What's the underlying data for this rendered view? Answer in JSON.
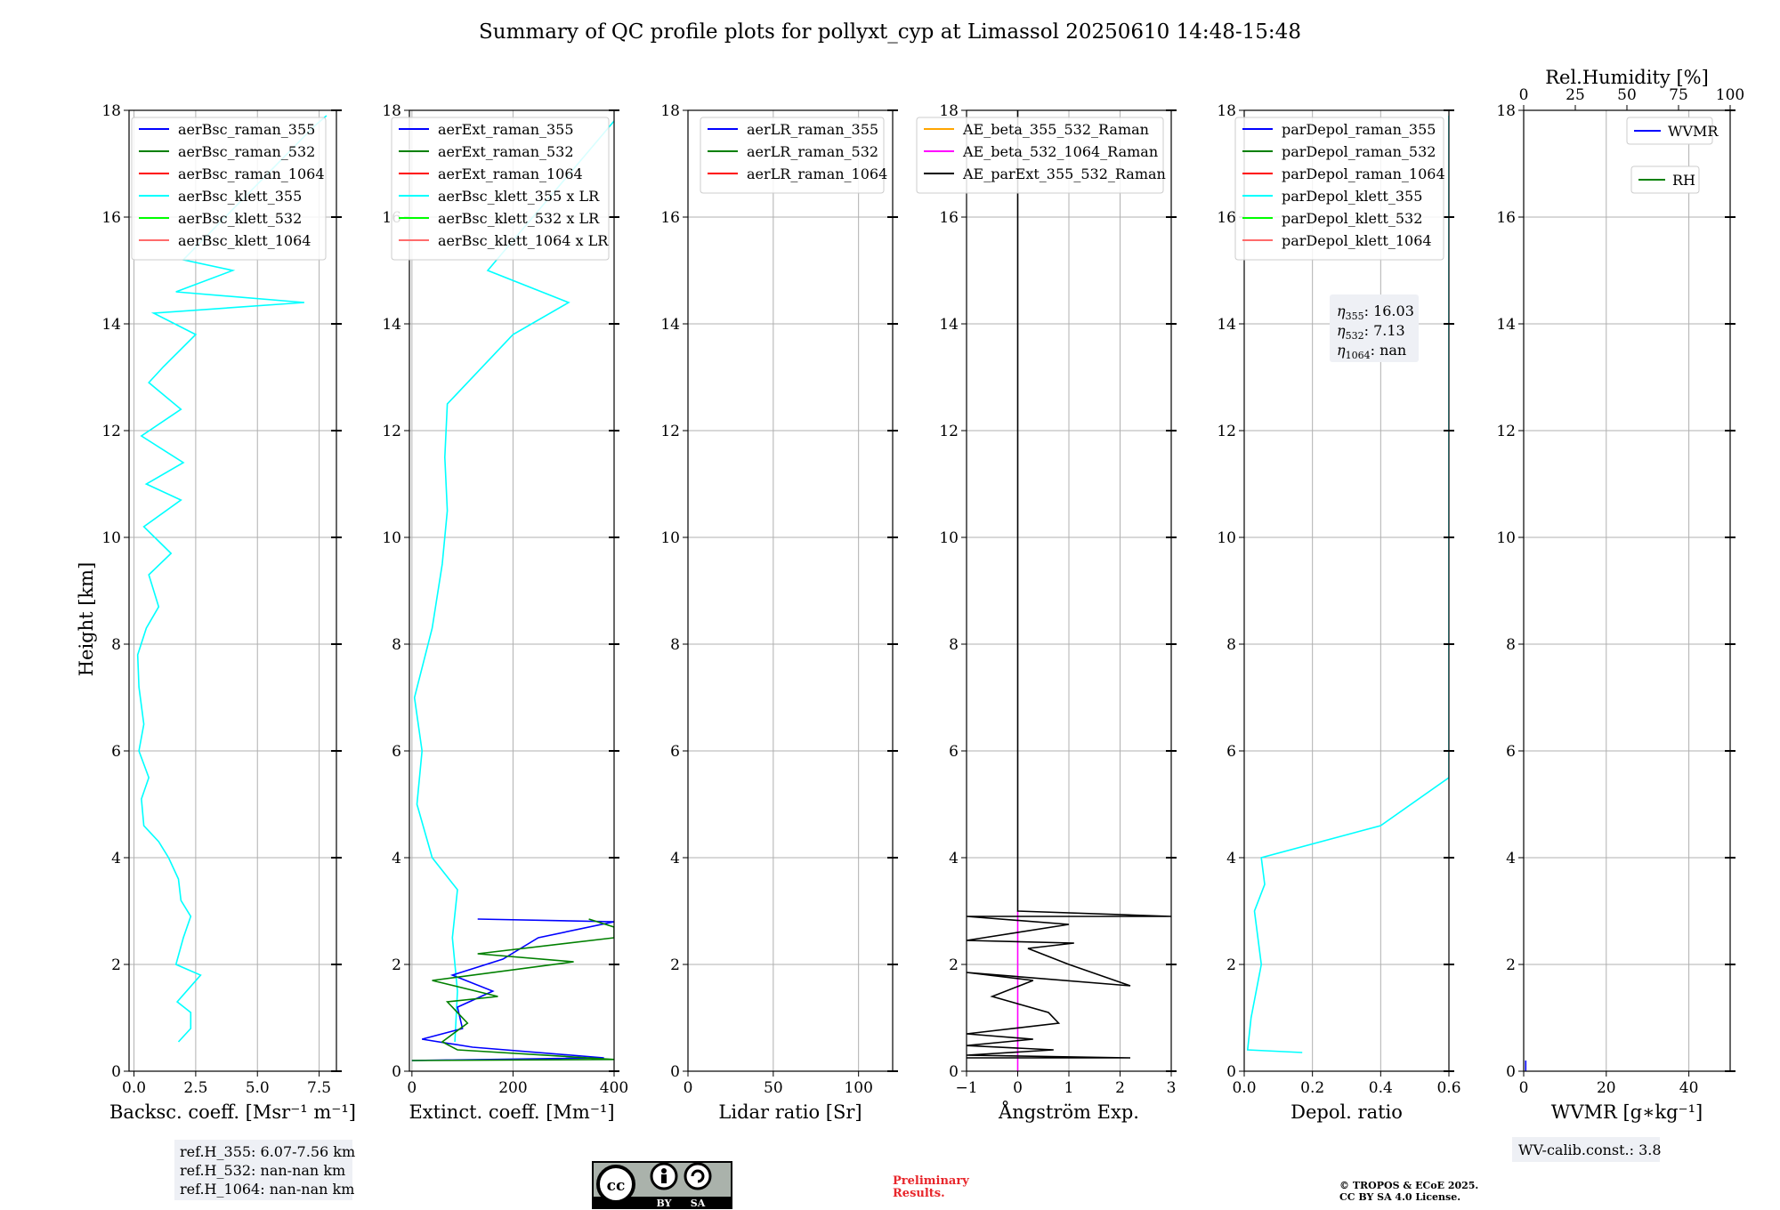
{
  "title": "Summary of QC profile plots for pollyxt_cyp at Limassol 20250610 14:48-15:48",
  "y_axis": {
    "label": "Height [km]",
    "range": [
      0,
      18
    ],
    "ticks": [
      "0",
      "2",
      "4",
      "6",
      "8",
      "10",
      "12",
      "14",
      "16",
      "18"
    ]
  },
  "chart_data": [
    {
      "type": "line",
      "id": "backscatter",
      "xlabel": "Backsc. coeff. [Msr⁻¹ m⁻¹]",
      "xlim": [
        -0.2,
        8.2
      ],
      "xticks": [
        {
          "v": 0,
          "t": "0.0"
        },
        {
          "v": 2.5,
          "t": "2.5"
        },
        {
          "v": 5,
          "t": "5.0"
        },
        {
          "v": 7.5,
          "t": "7.5"
        }
      ],
      "ylabel": "Height [km]",
      "ylim": [
        0,
        18
      ],
      "legend": [
        "aerBsc_raman_355",
        "aerBsc_raman_532",
        "aerBsc_raman_1064",
        "aerBsc_klett_355",
        "aerBsc_klett_532",
        "aerBsc_klett_1064"
      ],
      "legend_colors": [
        "#0000ff",
        "#008000",
        "#ff0000",
        "#00ffff",
        "#00ff00",
        "#ff6b6b"
      ],
      "legend_position": "top-right",
      "series": [
        {
          "name": "aerBsc_klett_355",
          "color": "#00ffff",
          "profile": [
            [
              1.8,
              0.55
            ],
            [
              2.3,
              0.8
            ],
            [
              2.3,
              1.1
            ],
            [
              1.75,
              1.3
            ],
            [
              2.7,
              1.8
            ],
            [
              1.7,
              2.0
            ],
            [
              2.0,
              2.5
            ],
            [
              2.3,
              2.9
            ],
            [
              1.9,
              3.2
            ],
            [
              1.8,
              3.6
            ],
            [
              1.4,
              4.0
            ],
            [
              1.0,
              4.3
            ],
            [
              0.4,
              4.6
            ],
            [
              0.3,
              5.1
            ],
            [
              0.6,
              5.5
            ],
            [
              0.2,
              6.0
            ],
            [
              0.4,
              6.5
            ],
            [
              0.2,
              7.2
            ],
            [
              0.15,
              7.8
            ],
            [
              0.5,
              8.3
            ],
            [
              1.0,
              8.7
            ],
            [
              0.6,
              9.3
            ],
            [
              1.5,
              9.7
            ],
            [
              0.4,
              10.2
            ],
            [
              1.9,
              10.7
            ],
            [
              0.5,
              11.0
            ],
            [
              2.0,
              11.4
            ],
            [
              0.3,
              11.9
            ],
            [
              1.9,
              12.4
            ],
            [
              0.6,
              12.9
            ],
            [
              1.2,
              13.2
            ],
            [
              2.5,
              13.8
            ],
            [
              0.8,
              14.2
            ],
            [
              6.9,
              14.4
            ],
            [
              1.7,
              14.6
            ],
            [
              4.0,
              15.0
            ],
            [
              2.0,
              15.2
            ],
            [
              7.3,
              17.7
            ],
            [
              7.8,
              17.9
            ]
          ]
        }
      ]
    },
    {
      "type": "line",
      "id": "extinction",
      "xlabel": "Extinct. coeff. [Mm⁻¹]",
      "xlim": [
        -5,
        400
      ],
      "xticks": [
        {
          "v": 0,
          "t": "0"
        },
        {
          "v": 200,
          "t": "200"
        },
        {
          "v": 400,
          "t": "400"
        }
      ],
      "ylim": [
        0,
        18
      ],
      "legend": [
        "aerExt_raman_355",
        "aerExt_raman_532",
        "aerExt_raman_1064",
        "aerBsc_klett_355 x LR",
        "aerBsc_klett_532 x LR",
        "aerBsc_klett_1064 x LR"
      ],
      "legend_colors": [
        "#0000ff",
        "#008000",
        "#ff0000",
        "#00ffff",
        "#00ff00",
        "#ff6b6b"
      ],
      "legend_position": "top-right",
      "series": [
        {
          "name": "aerBsc_klett_355 x LR",
          "color": "#00ffff",
          "profile": [
            [
              85,
              0.55
            ],
            [
              90,
              1.5
            ],
            [
              80,
              2.5
            ],
            [
              90,
              3.4
            ],
            [
              40,
              4.0
            ],
            [
              10,
              5.0
            ],
            [
              20,
              6.0
            ],
            [
              5,
              7.0
            ],
            [
              40,
              8.3
            ],
            [
              60,
              9.5
            ],
            [
              70,
              10.5
            ],
            [
              65,
              11.5
            ],
            [
              70,
              12.5
            ],
            [
              200,
              13.8
            ],
            [
              310,
              14.4
            ],
            [
              150,
              15.0
            ],
            [
              400,
              17.8
            ]
          ]
        },
        {
          "name": "aerExt_raman_355",
          "color": "#0000ff",
          "profile": [
            [
              0,
              0.2
            ],
            [
              380,
              0.25
            ],
            [
              120,
              0.45
            ],
            [
              20,
              0.6
            ],
            [
              100,
              0.8
            ],
            [
              90,
              1.2
            ],
            [
              160,
              1.5
            ],
            [
              80,
              1.8
            ],
            [
              180,
              2.1
            ],
            [
              250,
              2.5
            ],
            [
              400,
              2.8
            ],
            [
              130,
              2.85
            ]
          ]
        },
        {
          "name": "aerExt_raman_532",
          "color": "#008000",
          "profile": [
            [
              0,
              0.2
            ],
            [
              400,
              0.22
            ],
            [
              90,
              0.4
            ],
            [
              60,
              0.55
            ],
            [
              110,
              0.9
            ],
            [
              70,
              1.3
            ],
            [
              170,
              1.4
            ],
            [
              40,
              1.7
            ],
            [
              320,
              2.05
            ],
            [
              130,
              2.2
            ],
            [
              400,
              2.5
            ],
            [
              400,
              2.7
            ],
            [
              350,
              2.85
            ]
          ]
        }
      ]
    },
    {
      "type": "line",
      "id": "lidar-ratio",
      "xlabel": "Lidar ratio [Sr]",
      "xlim": [
        0,
        120
      ],
      "xticks": [
        {
          "v": 0,
          "t": "0"
        },
        {
          "v": 50,
          "t": "50"
        },
        {
          "v": 100,
          "t": "100"
        }
      ],
      "ylim": [
        0,
        18
      ],
      "legend": [
        "aerLR_raman_355",
        "aerLR_raman_532",
        "aerLR_raman_1064"
      ],
      "legend_colors": [
        "#0000ff",
        "#008000",
        "#ff0000"
      ],
      "legend_position": "top-left",
      "series": []
    },
    {
      "type": "line",
      "id": "angstrom",
      "xlabel": "Ångström Exp.",
      "xlim": [
        -1,
        3
      ],
      "xticks": [
        {
          "v": -1,
          "t": "−1"
        },
        {
          "v": 0,
          "t": "0"
        },
        {
          "v": 1,
          "t": "1"
        },
        {
          "v": 2,
          "t": "2"
        },
        {
          "v": 3,
          "t": "3"
        }
      ],
      "ylim": [
        0,
        18
      ],
      "legend": [
        "AE_beta_355_532_Raman",
        "AE_beta_532_1064_Raman",
        "AE_parExt_355_532_Raman"
      ],
      "legend_colors": [
        "#ffa500",
        "#ff00ff",
        "#000000"
      ],
      "legend_position": "top",
      "series": [
        {
          "name": "AE_beta_532_1064_Raman",
          "color": "#ff00ff",
          "profile": [
            [
              0,
              0
            ],
            [
              0,
              3.0
            ]
          ]
        },
        {
          "name": "AE_parExt_355_532_Raman",
          "color": "#000000",
          "profile": [
            [
              -1,
              0.25
            ],
            [
              2.2,
              0.25
            ],
            [
              -1,
              0.3
            ],
            [
              0.7,
              0.4
            ],
            [
              -1,
              0.48
            ],
            [
              0.3,
              0.6
            ],
            [
              -1,
              0.7
            ],
            [
              0.8,
              0.9
            ],
            [
              0.6,
              1.1
            ],
            [
              -0.5,
              1.4
            ],
            [
              0.3,
              1.7
            ],
            [
              -1,
              1.85
            ],
            [
              2.2,
              1.6
            ],
            [
              1.0,
              2.0
            ],
            [
              0.2,
              2.3
            ],
            [
              1.1,
              2.4
            ],
            [
              -1,
              2.45
            ],
            [
              1.0,
              2.75
            ],
            [
              -1,
              2.9
            ],
            [
              3,
              2.9
            ],
            [
              0,
              3.0
            ],
            [
              0,
              18
            ]
          ]
        }
      ]
    },
    {
      "type": "line",
      "id": "depol",
      "xlabel": "Depol. ratio",
      "xlim": [
        0,
        0.6
      ],
      "xticks": [
        {
          "v": 0,
          "t": "0.0"
        },
        {
          "v": 0.2,
          "t": "0.2"
        },
        {
          "v": 0.4,
          "t": "0.4"
        },
        {
          "v": 0.6,
          "t": "0.6"
        }
      ],
      "ylim": [
        0,
        18
      ],
      "legend": [
        "parDepol_raman_355",
        "parDepol_raman_532",
        "parDepol_raman_1064",
        "parDepol_klett_355",
        "parDepol_klett_532",
        "parDepol_klett_1064"
      ],
      "legend_colors": [
        "#0000ff",
        "#008000",
        "#ff0000",
        "#00ffff",
        "#00ff00",
        "#ff6b6b"
      ],
      "legend_position": "top-right",
      "series": [
        {
          "name": "parDepol_klett_355",
          "color": "#00ffff",
          "profile": [
            [
              0.17,
              0.35
            ],
            [
              0.01,
              0.4
            ],
            [
              0.02,
              1.0
            ],
            [
              0.05,
              2.0
            ],
            [
              0.03,
              3.0
            ],
            [
              0.06,
              3.5
            ],
            [
              0.05,
              4.0
            ],
            [
              0.4,
              4.6
            ],
            [
              0.6,
              5.5
            ],
            [
              0.6,
              7.5
            ],
            [
              0.6,
              10.3
            ],
            [
              0.6,
              13.0
            ],
            [
              0.6,
              15.0
            ],
            [
              0.6,
              17.9
            ]
          ]
        }
      ],
      "annotation": {
        "lines": [
          {
            "sub": "355",
            "val": "16.03"
          },
          {
            "sub": "532",
            "val": "7.13"
          },
          {
            "sub": "1064",
            "val": "nan"
          }
        ]
      }
    },
    {
      "type": "line",
      "id": "wvmr",
      "xlabel": "WVMR [g∗kg⁻¹]",
      "xlim": [
        0,
        50
      ],
      "xticks": [
        {
          "v": 0,
          "t": "0"
        },
        {
          "v": 20,
          "t": "20"
        },
        {
          "v": 40,
          "t": "40"
        }
      ],
      "top_xlabel": "Rel.Humidity [%]",
      "top_xlim": [
        0,
        100
      ],
      "top_xticks": [
        {
          "v": 0,
          "t": "0"
        },
        {
          "v": 25,
          "t": "25"
        },
        {
          "v": 50,
          "t": "50"
        },
        {
          "v": 75,
          "t": "75"
        },
        {
          "v": 100,
          "t": "100"
        }
      ],
      "ylim": [
        0,
        18
      ],
      "legend": [
        "WVMR",
        "RH"
      ],
      "legend_colors": [
        "#0000ff",
        "#008000"
      ],
      "legend_position": "top-right",
      "series": [
        {
          "name": "WVMR",
          "color": "#0000ff",
          "profile": [
            [
              0.5,
              0
            ],
            [
              0.5,
              0.2
            ]
          ]
        }
      ]
    }
  ],
  "boxes": {
    "ref_heights": [
      "ref.H_355: 6.07-7.56 km",
      "ref.H_532: nan-nan km",
      "ref.H_1064: nan-nan km"
    ],
    "wv_calib": "WV-calib.const.: 3.8"
  },
  "footer": {
    "preliminary": [
      "Preliminary",
      "Results."
    ],
    "copyright": [
      "© TROPOS & ECoE 2025.",
      "CC BY SA 4.0 License."
    ],
    "license_badge": {
      "cc": "cc",
      "by": "BY",
      "sa": "SA"
    }
  },
  "colors": {
    "grid": "#b0b0b0",
    "axis": "#000000",
    "legend_bg": "#ffffff",
    "box_bg": "#eef0f5"
  }
}
